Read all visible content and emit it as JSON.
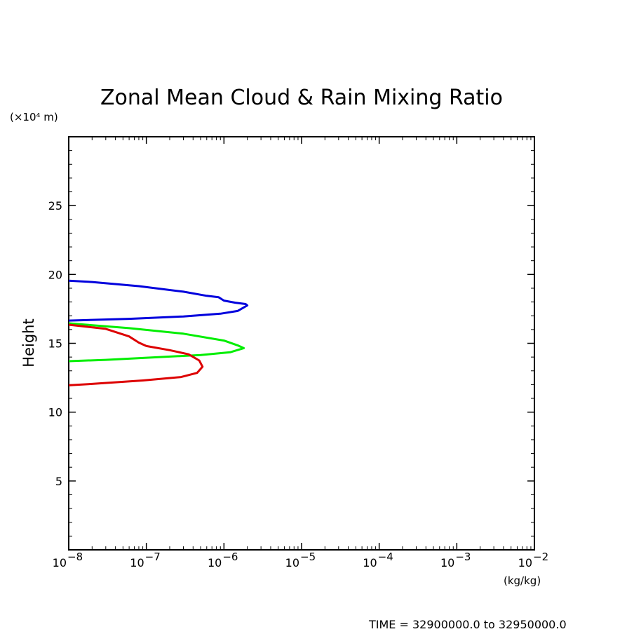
{
  "chart_data": {
    "type": "line",
    "title": "Zonal Mean Cloud & Rain Mixing Ratio",
    "ylabel": "Height",
    "yunit": "(×10⁴ m)",
    "xunit": "(kg/kg)",
    "xscale": "log",
    "xlim": [
      1e-08,
      0.01
    ],
    "ylim": [
      0,
      30
    ],
    "yticks": [
      5,
      10,
      15,
      20,
      25
    ],
    "ytick_labels": [
      "5",
      "10",
      "15",
      "20",
      "25"
    ],
    "xticks": [
      -8,
      -7,
      -6,
      -5,
      -4,
      -3,
      -2
    ],
    "xtick_labels": [
      "10",
      "10",
      "10",
      "10",
      "10",
      "10",
      "10"
    ],
    "xtick_exponents": [
      "−8",
      "−7",
      "−6",
      "−5",
      "−4",
      "−3",
      "−2"
    ],
    "grid": false,
    "series": [
      {
        "color": "#0000dd",
        "points": [
          [
            1e-08,
            19.55
          ],
          [
            2e-08,
            19.45
          ],
          [
            8e-08,
            19.15
          ],
          [
            3e-07,
            18.75
          ],
          [
            6e-07,
            18.45
          ],
          [
            8.5e-07,
            18.35
          ],
          [
            1e-06,
            18.1
          ],
          [
            1.4e-06,
            17.95
          ],
          [
            1.9e-06,
            17.85
          ],
          [
            2e-06,
            17.75
          ],
          [
            1.5e-06,
            17.35
          ],
          [
            9e-07,
            17.15
          ],
          [
            3e-07,
            16.95
          ],
          [
            6e-08,
            16.78
          ],
          [
            1e-08,
            16.65
          ]
        ]
      },
      {
        "color": "#00ee00",
        "points": [
          [
            1e-08,
            16.45
          ],
          [
            6e-08,
            16.1
          ],
          [
            3e-07,
            15.7
          ],
          [
            1e-06,
            15.2
          ],
          [
            1.5e-06,
            14.85
          ],
          [
            1.8e-06,
            14.65
          ],
          [
            1.2e-06,
            14.35
          ],
          [
            5e-07,
            14.15
          ],
          [
            1e-07,
            13.95
          ],
          [
            3e-08,
            13.8
          ],
          [
            1e-08,
            13.7
          ]
        ]
      },
      {
        "color": "#dd0000",
        "points": [
          [
            1e-08,
            16.35
          ],
          [
            3e-08,
            16.05
          ],
          [
            6e-08,
            15.5
          ],
          [
            8e-08,
            15.05
          ],
          [
            1e-07,
            14.8
          ],
          [
            2e-07,
            14.5
          ],
          [
            3.5e-07,
            14.2
          ],
          [
            4.8e-07,
            13.75
          ],
          [
            5.3e-07,
            13.3
          ],
          [
            4.5e-07,
            12.85
          ],
          [
            2.8e-07,
            12.55
          ],
          [
            9e-08,
            12.3
          ],
          [
            2e-08,
            12.05
          ],
          [
            1e-08,
            11.95
          ]
        ]
      }
    ]
  },
  "footer": {
    "time_text": "TIME = 32900000.0 to 32950000.0"
  }
}
